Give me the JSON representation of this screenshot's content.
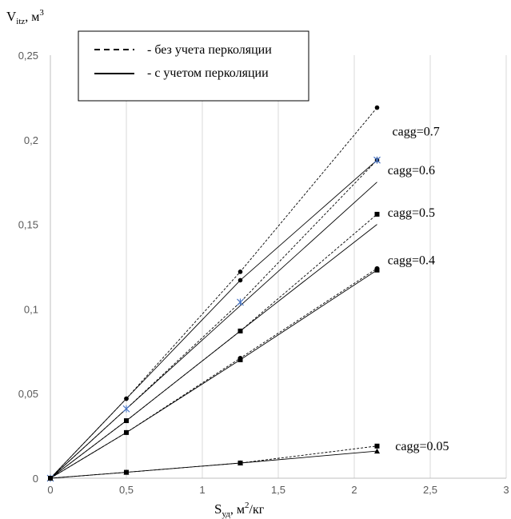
{
  "chart_data": {
    "type": "line",
    "ylabel_main": "V",
    "ylabel_sub": "itz",
    "ylabel_unit": ", м",
    "ylabel_sup": "3",
    "xlabel_main": "S",
    "xlabel_sub": "уд",
    "xlabel_unit": ", м",
    "xlabel_sup": "2",
    "xlabel_unit2": "/кг",
    "xlim": [
      0,
      3
    ],
    "ylim": [
      0,
      0.25
    ],
    "xticks": [
      0,
      0.5,
      1,
      1.5,
      2,
      2.5,
      3
    ],
    "xtick_labels": [
      "0",
      "0,5",
      "1",
      "1,5",
      "2",
      "2,5",
      "3"
    ],
    "yticks": [
      0,
      0.05,
      0.1,
      0.15,
      0.2,
      0.25
    ],
    "ytick_labels": [
      "0",
      "0,05",
      "0,1",
      "0,15",
      "0,2",
      "0,25"
    ],
    "grid": "vertical",
    "legend": {
      "placement": "top-left",
      "entries": [
        {
          "label": "- без учета перколяции",
          "style": "dashed"
        },
        {
          "label": "- с учетом перколяции",
          "style": "solid"
        }
      ]
    },
    "annotations": [
      {
        "text": "cagg=0.7",
        "x": 2.25,
        "y": 0.2025
      },
      {
        "text": "cagg=0.6",
        "x": 2.22,
        "y": 0.1795
      },
      {
        "text": "cagg=0.5",
        "x": 2.22,
        "y": 0.1545
      },
      {
        "text": "cagg=0.4",
        "x": 2.22,
        "y": 0.1265
      },
      {
        "text": "cagg=0.05",
        "x": 2.27,
        "y": 0.0165
      }
    ],
    "series": [
      {
        "cagg": "0.7",
        "style": "dashed",
        "marker": "circle",
        "x": [
          0,
          0.5,
          1.25,
          2.15
        ],
        "y": [
          0,
          0.047,
          0.122,
          0.219
        ]
      },
      {
        "cagg": "0.7",
        "style": "solid",
        "marker": "circle",
        "x": [
          0,
          0.5,
          1.25,
          2.15
        ],
        "y": [
          0,
          0.047,
          0.117,
          0.188
        ]
      },
      {
        "cagg": "0.6",
        "style": "dashed",
        "marker": "asterisk",
        "x": [
          0,
          0.5,
          1.25,
          2.15
        ],
        "y": [
          0,
          0.041,
          0.104,
          0.188
        ]
      },
      {
        "cagg": "0.6",
        "style": "solid",
        "marker": "none",
        "x": [
          0,
          0.5,
          1.25,
          2.15
        ],
        "y": [
          0,
          0.041,
          0.102,
          0.175
        ]
      },
      {
        "cagg": "0.5",
        "style": "dashed",
        "marker": "square",
        "x": [
          0,
          0.5,
          1.25,
          2.15
        ],
        "y": [
          0,
          0.034,
          0.087,
          0.156
        ]
      },
      {
        "cagg": "0.5",
        "style": "solid",
        "marker": "none",
        "x": [
          0,
          0.5,
          1.25,
          2.15
        ],
        "y": [
          0,
          0.034,
          0.087,
          0.15
        ]
      },
      {
        "cagg": "0.4",
        "style": "dashed",
        "marker": "circle",
        "x": [
          0,
          0.5,
          1.25,
          2.15
        ],
        "y": [
          0,
          0.027,
          0.071,
          0.124
        ]
      },
      {
        "cagg": "0.4",
        "style": "solid",
        "marker": "square",
        "x": [
          0,
          0.5,
          1.25,
          2.15
        ],
        "y": [
          0,
          0.027,
          0.07,
          0.123
        ]
      },
      {
        "cagg": "0.05",
        "style": "dashed",
        "marker": "square",
        "x": [
          0,
          0.5,
          1.25,
          2.15
        ],
        "y": [
          0,
          0.0035,
          0.009,
          0.019
        ]
      },
      {
        "cagg": "0.05",
        "style": "solid",
        "marker": "triangle",
        "x": [
          0,
          0.5,
          1.25,
          2.15
        ],
        "y": [
          0,
          0.0035,
          0.009,
          0.016
        ]
      }
    ],
    "colors": {
      "line": "#000000",
      "grid": "#d9d9d9",
      "asterisk": "#4472c4",
      "tick_text": "#595959"
    }
  }
}
